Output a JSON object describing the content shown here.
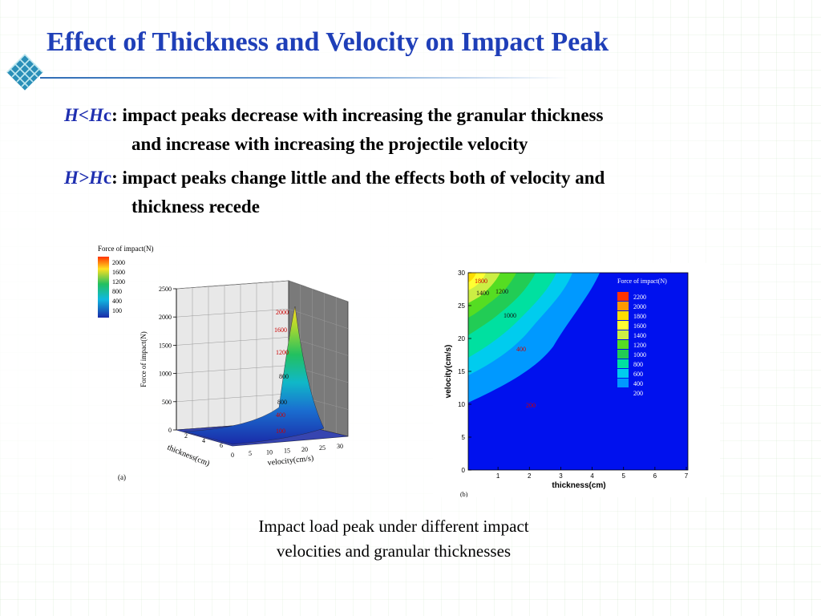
{
  "slide": {
    "title": "Effect of Thickness and Velocity on Impact Peak",
    "caption_line1": "Impact load peak under different impact",
    "caption_line2": "velocities and granular thicknesses",
    "accent_color": "#1f3fb8"
  },
  "bullets": [
    {
      "cond_main": "H<H",
      "cond_tail": "c",
      "text_line1": ": impact peaks decrease with increasing the granular thickness",
      "text_line2": "and increase with increasing the projectile velocity"
    },
    {
      "cond_main": "H>H",
      "cond_tail": "c",
      "text_line1": ": impact peaks change little and the effects both of velocity and",
      "text_line2": "thickness recede"
    }
  ],
  "chart_data": [
    {
      "type": "surface",
      "panel_label": "(a)",
      "legend_title": "Force of impact(N)",
      "legend_levels": [
        "2000",
        "1600",
        "1200",
        "800",
        "400",
        "100"
      ],
      "zlabel": "Force of impact(N)",
      "zticks": [
        "0",
        "500",
        "1000",
        "1500",
        "2000",
        "2500"
      ],
      "xlabel": "thickness(cm)",
      "xticks": [
        "2",
        "4",
        "6"
      ],
      "ylabel": "velocity(cm/s)",
      "yticks": [
        "0",
        "5",
        "10",
        "15",
        "20",
        "25",
        "30"
      ],
      "surface_labels": [
        "2000",
        "1600",
        "1200",
        "800",
        "800",
        "400",
        "100"
      ]
    },
    {
      "type": "contour",
      "panel_label": "(b)",
      "legend_title": "Force of impact(N)",
      "legend_levels": [
        "2200",
        "2000",
        "1800",
        "1600",
        "1400",
        "1200",
        "1000",
        "800",
        "600",
        "400",
        "200"
      ],
      "legend_colors": [
        "#ff3300",
        "#ff9900",
        "#ffdd00",
        "#ffff33",
        "#ccee44",
        "#55dd22",
        "#22cc55",
        "#00e0a0",
        "#00ccee",
        "#0099ff",
        "#0011ee"
      ],
      "xlabel": "thickness(cm)",
      "ylabel": "velocity(cm/s)",
      "xticks": [
        "1",
        "2",
        "3",
        "4",
        "5",
        "6",
        "7"
      ],
      "yticks": [
        "0",
        "5",
        "10",
        "15",
        "20",
        "25",
        "30"
      ],
      "contour_labels": [
        "1800",
        "1400",
        "1200",
        "1000",
        "400",
        "200"
      ]
    }
  ]
}
